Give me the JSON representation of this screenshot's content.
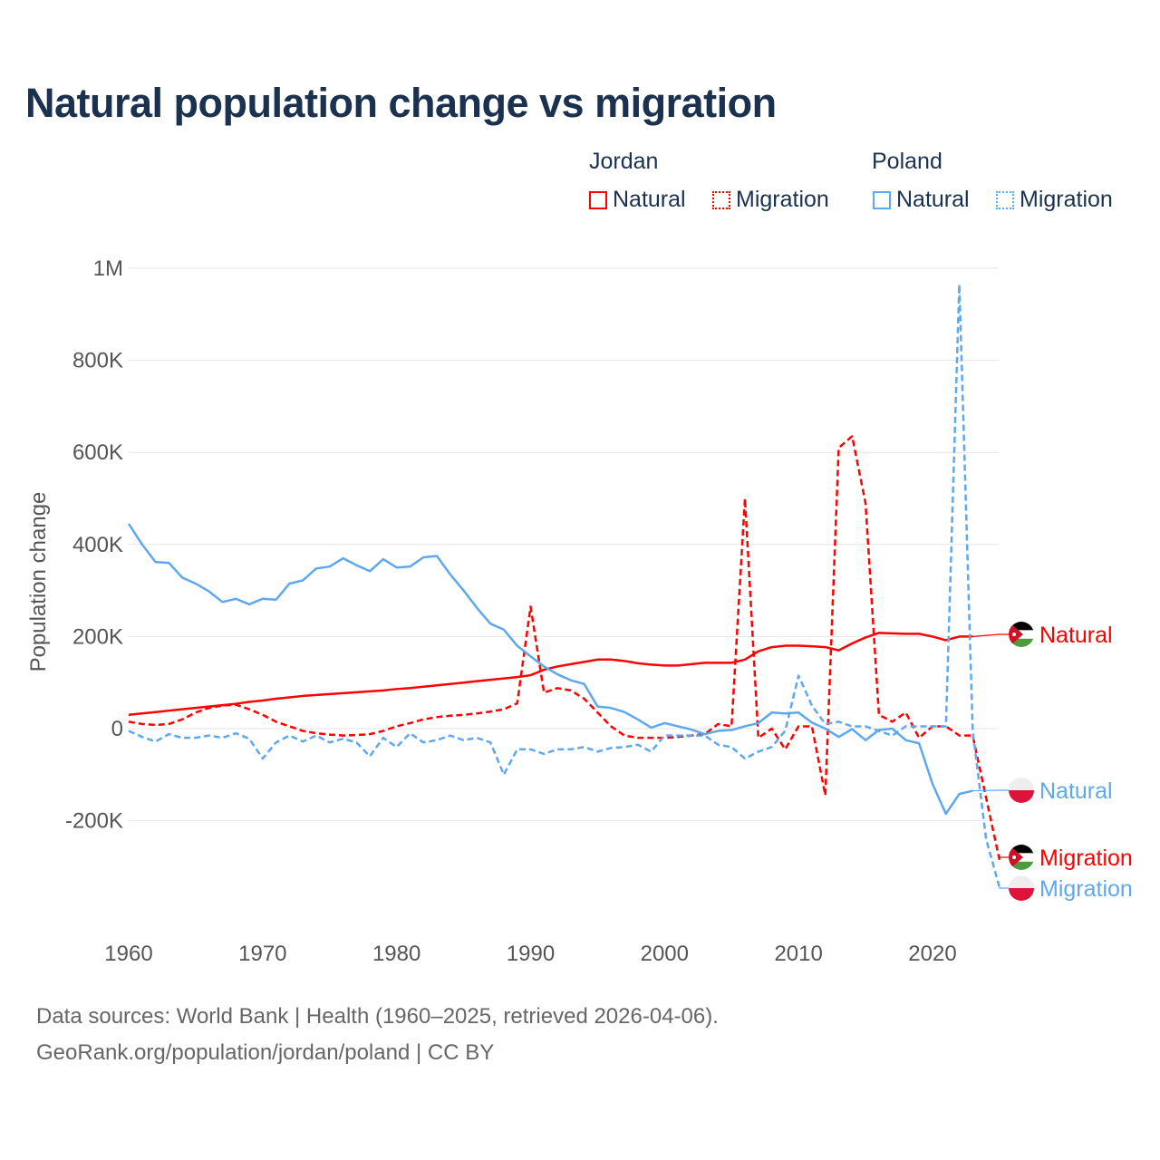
{
  "title": "Natural population change vs migration",
  "legend": {
    "groups": [
      {
        "name": "Jordan",
        "items": [
          "Natural",
          "Migration"
        ]
      },
      {
        "name": "Poland",
        "items": [
          "Natural",
          "Migration"
        ]
      }
    ]
  },
  "footer": {
    "line1": "Data sources: World Bank | Health (1960–2025, retrieved 2026-04-06).",
    "line2": "GeoRank.org/population/jordan/poland | CC BY"
  },
  "chart_data": {
    "type": "line",
    "title": "Natural population change vs migration",
    "xlabel": "",
    "ylabel": "Population change",
    "xlim": [
      1960,
      2025
    ],
    "ylim": [
      -200000,
      1000000
    ],
    "x_ticks": [
      "1960",
      "1970",
      "1980",
      "1990",
      "2000",
      "2010",
      "2020"
    ],
    "y_ticks": [
      {
        "v": 1000000,
        "label": "1M"
      },
      {
        "v": 800000,
        "label": "800K"
      },
      {
        "v": 600000,
        "label": "600K"
      },
      {
        "v": 400000,
        "label": "400K"
      },
      {
        "v": 200000,
        "label": "200K"
      },
      {
        "v": 0,
        "label": "0"
      },
      {
        "v": -200000,
        "label": "-200K"
      }
    ],
    "grid": true,
    "x_start": 1960,
    "series": [
      {
        "name": "Jordan Natural",
        "end_label": "Natural",
        "country": "jordan",
        "color": "#ff0000",
        "dash": "solid",
        "values": [
          30000,
          33000,
          36000,
          39000,
          42000,
          45000,
          48000,
          51000,
          54000,
          58000,
          61000,
          65000,
          68000,
          71000,
          73000,
          75000,
          77000,
          79000,
          81000,
          83000,
          86000,
          88000,
          91000,
          94000,
          97000,
          100000,
          103000,
          106000,
          109000,
          112000,
          116000,
          128000,
          135000,
          140000,
          145000,
          150000,
          150000,
          147000,
          142000,
          139000,
          137000,
          137000,
          140000,
          143000,
          143000,
          143000,
          150000,
          168000,
          177000,
          180000,
          180000,
          179000,
          177000,
          170000,
          185000,
          198000,
          208000,
          207000,
          206000,
          206000,
          200000,
          192000,
          200000,
          200000
        ]
      },
      {
        "name": "Jordan Migration",
        "end_label": "Migration",
        "country": "jordan",
        "color": "#ff0000",
        "dash": "dashed",
        "values": [
          15000,
          10000,
          8000,
          10000,
          20000,
          35000,
          45000,
          50000,
          52000,
          42000,
          30000,
          15000,
          5000,
          -5000,
          -10000,
          -13000,
          -15000,
          -14000,
          -12000,
          -5000,
          5000,
          12000,
          20000,
          25000,
          28000,
          30000,
          33000,
          37000,
          42000,
          55000,
          265000,
          78000,
          88000,
          83000,
          65000,
          35000,
          5000,
          -15000,
          -20000,
          -20000,
          -20000,
          -18000,
          -15000,
          -12000,
          10000,
          5000,
          500000,
          -20000,
          0,
          -45000,
          5000,
          5000,
          -145000,
          610000,
          635000,
          490000,
          30000,
          15000,
          35000,
          -20000,
          5000,
          5000,
          -15000,
          -15000,
          -150000,
          -285000
        ]
      },
      {
        "name": "Poland Natural",
        "end_label": "Natural",
        "country": "poland",
        "color": "#5ea8ef",
        "dash": "solid",
        "values": [
          445000,
          400000,
          362000,
          360000,
          328000,
          315000,
          298000,
          275000,
          282000,
          270000,
          282000,
          280000,
          315000,
          322000,
          348000,
          352000,
          370000,
          355000,
          342000,
          368000,
          350000,
          352000,
          372000,
          375000,
          335000,
          300000,
          262000,
          228000,
          215000,
          180000,
          157000,
          135000,
          118000,
          105000,
          97000,
          48000,
          45000,
          36000,
          20000,
          2000,
          12000,
          5000,
          -2000,
          -12000,
          -5000,
          -3000,
          5000,
          12000,
          35000,
          33000,
          35000,
          13000,
          0,
          -18000,
          -1000,
          -25000,
          -3000,
          0,
          -25000,
          -32000,
          -120000,
          -185000,
          -142000,
          -135000
        ]
      },
      {
        "name": "Poland Migration",
        "end_label": "Migration",
        "country": "poland",
        "color": "#5ea8ef",
        "dash": "dashed",
        "values": [
          -5000,
          -18000,
          -28000,
          -12000,
          -20000,
          -20000,
          -15000,
          -20000,
          -10000,
          -22000,
          -65000,
          -30000,
          -15000,
          -28000,
          -15000,
          -30000,
          -22000,
          -30000,
          -60000,
          -20000,
          -40000,
          -10000,
          -30000,
          -25000,
          -15000,
          -25000,
          -20000,
          -30000,
          -100000,
          -45000,
          -45000,
          -55000,
          -45000,
          -45000,
          -40000,
          -50000,
          -42000,
          -40000,
          -35000,
          -50000,
          -15000,
          -15000,
          -15000,
          -15000,
          -35000,
          -40000,
          -65000,
          -50000,
          -40000,
          -5000,
          115000,
          50000,
          10000,
          15000,
          5000,
          5000,
          -5000,
          -15000,
          5000,
          5000,
          5000,
          5000,
          965000,
          -5000,
          -240000,
          -345000
        ]
      }
    ]
  }
}
